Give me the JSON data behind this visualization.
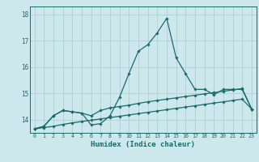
{
  "title": "",
  "xlabel": "Humidex (Indice chaleur)",
  "xlim": [
    -0.5,
    23.5
  ],
  "ylim": [
    13.5,
    18.3
  ],
  "yticks": [
    14,
    15,
    16,
    17,
    18
  ],
  "xticks": [
    0,
    1,
    2,
    3,
    4,
    5,
    6,
    7,
    8,
    9,
    10,
    11,
    12,
    13,
    14,
    15,
    16,
    17,
    18,
    19,
    20,
    21,
    22,
    23
  ],
  "bg_color": "#cde8ec",
  "grid_color": "#aecfd4",
  "line_color": "#1a6b68",
  "line1_x": [
    0,
    1,
    2,
    3,
    4,
    5,
    6,
    7,
    8,
    9,
    10,
    11,
    12,
    13,
    14,
    15,
    16,
    17,
    18,
    19,
    20,
    21,
    22,
    23
  ],
  "line1_y": [
    13.65,
    13.75,
    14.15,
    14.35,
    14.3,
    14.25,
    13.8,
    13.85,
    14.15,
    14.85,
    15.75,
    16.6,
    16.85,
    17.3,
    17.85,
    16.35,
    15.75,
    15.15,
    15.15,
    14.95,
    15.15,
    15.15,
    15.15,
    14.4
  ],
  "line2_x": [
    0,
    1,
    2,
    3,
    4,
    5,
    6,
    7,
    8,
    9,
    10,
    11,
    12,
    13,
    14,
    15,
    16,
    17,
    18,
    19,
    20,
    21,
    22,
    23
  ],
  "line2_y": [
    13.65,
    13.75,
    14.15,
    14.35,
    14.3,
    14.25,
    14.15,
    14.35,
    14.45,
    14.5,
    14.55,
    14.62,
    14.68,
    14.73,
    14.78,
    14.83,
    14.88,
    14.93,
    14.98,
    15.03,
    15.08,
    15.13,
    15.18,
    14.4
  ],
  "line3_x": [
    0,
    1,
    2,
    3,
    4,
    5,
    6,
    7,
    8,
    9,
    10,
    11,
    12,
    13,
    14,
    15,
    16,
    17,
    18,
    19,
    20,
    21,
    22,
    23
  ],
  "line3_y": [
    13.65,
    13.7,
    13.75,
    13.82,
    13.88,
    13.93,
    13.98,
    14.03,
    14.08,
    14.13,
    14.18,
    14.23,
    14.28,
    14.33,
    14.38,
    14.43,
    14.48,
    14.53,
    14.58,
    14.63,
    14.68,
    14.73,
    14.78,
    14.4
  ]
}
